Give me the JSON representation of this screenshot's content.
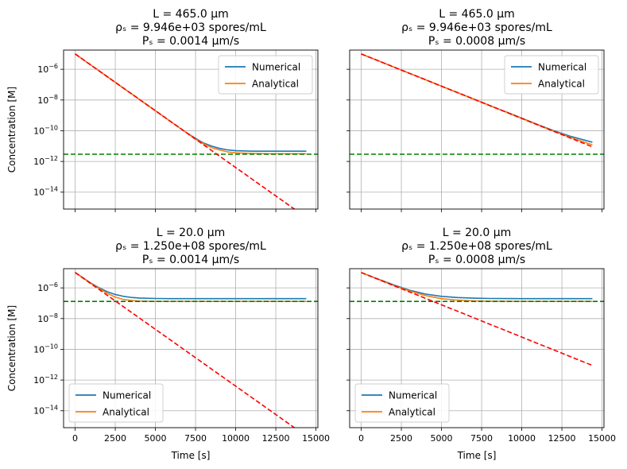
{
  "figure": {
    "background": "#ffffff"
  },
  "colors": {
    "numerical": "#1f77b4",
    "analytical": "#ff7f0e",
    "asymptote": "#008000",
    "initial_decay": "#ff0000",
    "grid": "#b0b0b0"
  },
  "chart_data": [
    {
      "type": "line",
      "title_lines": [
        "L = 465.0 µm",
        "ρₛ = 9.946e+03 spores/mL",
        "Pₛ = 0.0014 µm/s"
      ],
      "xlabel": "",
      "ylabel": "Concentration [M]",
      "y_scale": "log",
      "xlim": [
        -720,
        15120
      ],
      "ylim_exp": [
        -15.1,
        -4.75
      ],
      "x_ticks": [
        0,
        2500,
        5000,
        7500,
        10000,
        12500,
        15000
      ],
      "x_tick_labels": [],
      "y_ticks_exp": [
        -14,
        -12,
        -10,
        -8,
        -6
      ],
      "y_tick_labels": [
        "10^-14",
        "10^-12",
        "10^-10",
        "10^-8",
        "10^-6"
      ],
      "grid": true,
      "legend": {
        "position": "upper right",
        "entries": [
          "Numerical",
          "Analytical"
        ]
      },
      "series": [
        {
          "name": "Numerical",
          "style": "solid",
          "color": "#1f77b4",
          "x": [
            0,
            1000,
            2000,
            3000,
            4000,
            5000,
            6000,
            7000,
            7500,
            8000,
            8500,
            9000,
            9500,
            10000,
            11000,
            12000,
            13000,
            14400
          ],
          "y_exp": [
            -5.0,
            -5.74,
            -6.48,
            -7.22,
            -7.96,
            -8.7,
            -9.44,
            -10.17,
            -10.5,
            -10.8,
            -11.0,
            -11.15,
            -11.25,
            -11.3,
            -11.33,
            -11.33,
            -11.33,
            -11.33
          ]
        },
        {
          "name": "Analytical",
          "style": "solid",
          "color": "#ff7f0e",
          "x": [
            0,
            1000,
            2000,
            3000,
            4000,
            5000,
            6000,
            7000,
            7500,
            8000,
            8500,
            9000,
            9500,
            10000,
            11000,
            12000,
            13000,
            14400
          ],
          "y_exp": [
            -5.0,
            -5.74,
            -6.48,
            -7.22,
            -7.96,
            -8.7,
            -9.44,
            -10.18,
            -10.55,
            -10.85,
            -11.1,
            -11.25,
            -11.38,
            -11.44,
            -11.48,
            -11.5,
            -11.5,
            -11.5
          ]
        },
        {
          "style": "dashed",
          "color": "#008000",
          "x": [
            -720,
            15120
          ],
          "y_exp": [
            -11.53,
            -11.53
          ]
        },
        {
          "style": "dashed",
          "color": "#ff0000",
          "x": [
            0,
            14400
          ],
          "y_exp": [
            -5.0,
            -15.65
          ]
        }
      ]
    },
    {
      "type": "line",
      "title_lines": [
        "L = 465.0 µm",
        "ρₛ = 9.946e+03 spores/mL",
        "Pₛ = 0.0008 µm/s"
      ],
      "xlabel": "",
      "ylabel": "",
      "y_scale": "log",
      "xlim": [
        -720,
        15120
      ],
      "ylim_exp": [
        -15.1,
        -4.75
      ],
      "x_ticks": [
        0,
        2500,
        5000,
        7500,
        10000,
        12500,
        15000
      ],
      "x_tick_labels": [],
      "y_ticks_exp": [
        -14,
        -12,
        -10,
        -8,
        -6
      ],
      "y_tick_labels": [],
      "grid": true,
      "legend": {
        "position": "upper right",
        "entries": [
          "Numerical",
          "Analytical"
        ]
      },
      "series": [
        {
          "name": "Numerical",
          "style": "solid",
          "color": "#1f77b4",
          "x": [
            0,
            2000,
            4000,
            6000,
            8000,
            10000,
            11000,
            12000,
            13000,
            14400
          ],
          "y_exp": [
            -5.0,
            -5.84,
            -6.68,
            -7.52,
            -8.35,
            -9.18,
            -9.6,
            -10.0,
            -10.35,
            -10.75
          ]
        },
        {
          "name": "Analytical",
          "style": "solid",
          "color": "#ff7f0e",
          "x": [
            0,
            2000,
            4000,
            6000,
            8000,
            10000,
            11000,
            12000,
            13000,
            14400
          ],
          "y_exp": [
            -5.0,
            -5.84,
            -6.68,
            -7.52,
            -8.36,
            -9.2,
            -9.62,
            -10.04,
            -10.42,
            -10.92
          ]
        },
        {
          "style": "dashed",
          "color": "#008000",
          "x": [
            -720,
            15120
          ],
          "y_exp": [
            -11.53,
            -11.53
          ]
        },
        {
          "style": "dashed",
          "color": "#ff0000",
          "x": [
            0,
            14400
          ],
          "y_exp": [
            -5.0,
            -11.05
          ]
        }
      ]
    },
    {
      "type": "line",
      "title_lines": [
        "L = 20.0 µm",
        "ρₛ = 1.250e+08 spores/mL",
        "Pₛ = 0.0014 µm/s"
      ],
      "xlabel": "Time [s]",
      "ylabel": "Concentration [M]",
      "y_scale": "log",
      "xlim": [
        -720,
        15120
      ],
      "ylim_exp": [
        -15.1,
        -4.75
      ],
      "x_ticks": [
        0,
        2500,
        5000,
        7500,
        10000,
        12500,
        15000
      ],
      "x_tick_labels": [
        "0",
        "2500",
        "5000",
        "7500",
        "10000",
        "12500",
        "15000"
      ],
      "y_ticks_exp": [
        -14,
        -12,
        -10,
        -8,
        -6
      ],
      "y_tick_labels": [
        "10^-14",
        "10^-12",
        "10^-10",
        "10^-8",
        "10^-6"
      ],
      "grid": true,
      "legend": {
        "position": "lower left",
        "entries": [
          "Numerical",
          "Analytical"
        ]
      },
      "series": [
        {
          "name": "Numerical",
          "style": "solid",
          "color": "#1f77b4",
          "x": [
            0,
            500,
            1000,
            1500,
            2000,
            2500,
            3000,
            3500,
            4000,
            5000,
            6000,
            8000,
            10000,
            14400
          ],
          "y_exp": [
            -5.0,
            -5.35,
            -5.7,
            -6.0,
            -6.25,
            -6.43,
            -6.55,
            -6.62,
            -6.66,
            -6.69,
            -6.7,
            -6.7,
            -6.7,
            -6.7
          ]
        },
        {
          "name": "Analytical",
          "style": "solid",
          "color": "#ff7f0e",
          "x": [
            0,
            500,
            1000,
            1500,
            2000,
            2500,
            3000,
            3500,
            4000,
            5000,
            6000,
            8000,
            10000,
            14400
          ],
          "y_exp": [
            -5.0,
            -5.37,
            -5.73,
            -6.05,
            -6.35,
            -6.6,
            -6.75,
            -6.82,
            -6.86,
            -6.88,
            -6.88,
            -6.88,
            -6.88,
            -6.88
          ]
        },
        {
          "style": "dashed",
          "color": "#008000",
          "x": [
            -720,
            15120
          ],
          "y_exp": [
            -6.88,
            -6.88
          ]
        },
        {
          "style": "dashed",
          "color": "#ff0000",
          "x": [
            0,
            14400
          ],
          "y_exp": [
            -5.0,
            -15.65
          ]
        }
      ]
    },
    {
      "type": "line",
      "title_lines": [
        "L = 20.0 µm",
        "ρₛ = 1.250e+08 spores/mL",
        "Pₛ = 0.0008 µm/s"
      ],
      "xlabel": "Time [s]",
      "ylabel": "",
      "y_scale": "log",
      "xlim": [
        -720,
        15120
      ],
      "ylim_exp": [
        -15.1,
        -4.75
      ],
      "x_ticks": [
        0,
        2500,
        5000,
        7500,
        10000,
        12500,
        15000
      ],
      "x_tick_labels": [
        "0",
        "2500",
        "5000",
        "7500",
        "10000",
        "12500",
        "15000"
      ],
      "y_ticks_exp": [
        -14,
        -12,
        -10,
        -8,
        -6
      ],
      "y_tick_labels": [],
      "grid": true,
      "legend": {
        "position": "lower left",
        "entries": [
          "Numerical",
          "Analytical"
        ]
      },
      "series": [
        {
          "name": "Numerical",
          "style": "solid",
          "color": "#1f77b4",
          "x": [
            0,
            1000,
            2000,
            3000,
            4000,
            5000,
            6000,
            7000,
            8000,
            10000,
            14400
          ],
          "y_exp": [
            -5.0,
            -5.4,
            -5.8,
            -6.15,
            -6.4,
            -6.55,
            -6.63,
            -6.67,
            -6.69,
            -6.7,
            -6.7
          ]
        },
        {
          "name": "Analytical",
          "style": "solid",
          "color": "#ff7f0e",
          "x": [
            0,
            1000,
            2000,
            3000,
            4000,
            5000,
            6000,
            7000,
            8000,
            10000,
            14400
          ],
          "y_exp": [
            -5.0,
            -5.42,
            -5.84,
            -6.2,
            -6.5,
            -6.7,
            -6.8,
            -6.85,
            -6.87,
            -6.88,
            -6.88
          ]
        },
        {
          "style": "dashed",
          "color": "#008000",
          "x": [
            -720,
            15120
          ],
          "y_exp": [
            -6.88,
            -6.88
          ]
        },
        {
          "style": "dashed",
          "color": "#ff0000",
          "x": [
            0,
            14400
          ],
          "y_exp": [
            -5.0,
            -11.05
          ]
        }
      ]
    }
  ]
}
